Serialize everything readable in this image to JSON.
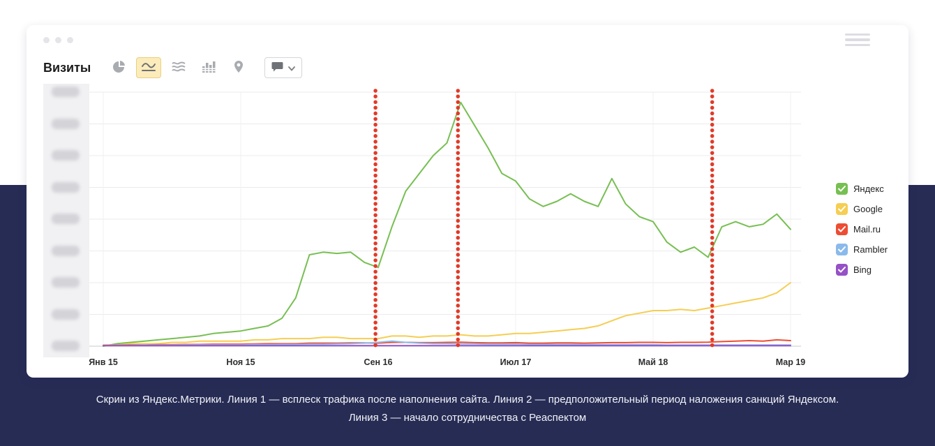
{
  "colors": {
    "page_band": "#272c55",
    "annotation_line": "#e23a28",
    "selected_button_bg": "#fcecbb"
  },
  "toolbar": {
    "metric_label": "Визиты",
    "chart_type_buttons": [
      {
        "icon": "pie-chart",
        "selected": false
      },
      {
        "icon": "line-chart",
        "selected": true
      },
      {
        "icon": "area-chart",
        "selected": false
      },
      {
        "icon": "bar-chart",
        "selected": false
      },
      {
        "icon": "map-pin",
        "selected": false
      }
    ],
    "comment_button": {
      "icon": "comment-bubble",
      "has_dropdown": true
    }
  },
  "legend": {
    "items": [
      {
        "label": "Яндекс",
        "color": "#77bf52",
        "checked": true
      },
      {
        "label": "Google",
        "color": "#f5ce52",
        "checked": true
      },
      {
        "label": "Mail.ru",
        "color": "#ee4d33",
        "checked": true
      },
      {
        "label": "Rambler",
        "color": "#8abaeb",
        "checked": true
      },
      {
        "label": "Bing",
        "color": "#9551c6",
        "checked": true
      }
    ]
  },
  "caption": {
    "line1": "Скрин из Яндекс.Метрики. Линия 1 — всплеск трафика после наполнения сайта. Линия 2 — предположительный период наложения санкций Яндексом.",
    "line2": "Линия 3 — начало сотрудничества с Реаспектом"
  },
  "chart_data": {
    "type": "line",
    "title": "Визиты",
    "x_unit": "months, Jan 2015 – Mar 2019",
    "x_tick_labels": [
      "Янв 15",
      "Ноя 15",
      "Сен 16",
      "Июл 17",
      "Май 18",
      "Мар 19"
    ],
    "x_tick_month_indices": [
      0,
      10,
      20,
      30,
      40,
      50
    ],
    "y_tick_labels": "blurred / illegible in screenshot",
    "ylim": [
      0,
      100
    ],
    "y_unit": "visits (relative scale, axis labels blurred)",
    "grid": true,
    "legend_position": "right",
    "annotation_color": "#e23a28",
    "annotations": [
      {
        "name": "Линия 1",
        "month_index": 19.8,
        "style": "red dotted vertical line"
      },
      {
        "name": "Линия 2",
        "month_index": 25.8,
        "style": "red dotted vertical line"
      },
      {
        "name": "Линия 3",
        "month_index": 44.3,
        "style": "red dotted vertical line"
      }
    ],
    "series": [
      {
        "name": "Яндекс",
        "color": "#77bf52",
        "values": [
          0,
          1,
          1.5,
          2,
          2.5,
          3,
          3.5,
          4,
          5,
          5.5,
          6,
          7,
          8,
          11,
          19,
          36,
          37,
          36.5,
          37,
          33,
          31,
          47,
          61,
          68,
          75,
          80,
          96,
          87,
          78,
          68,
          65,
          58,
          55,
          57,
          60,
          57,
          55,
          66,
          56,
          51,
          49,
          41,
          37,
          39,
          35,
          47,
          49,
          47,
          48,
          52,
          46
        ]
      },
      {
        "name": "Google",
        "color": "#f5ce52",
        "values": [
          0.5,
          0.5,
          1,
          1,
          1,
          1.5,
          1.5,
          2,
          2,
          2,
          2,
          2.5,
          2.5,
          3,
          3,
          3,
          3.5,
          3.5,
          3,
          3,
          3,
          4,
          4,
          3.5,
          4,
          4,
          4.5,
          4,
          4,
          4.5,
          5,
          5,
          5.5,
          6,
          6.5,
          7,
          8,
          10,
          12,
          13,
          14,
          14,
          14.5,
          14,
          15,
          16,
          17,
          18,
          19,
          21,
          25
        ]
      },
      {
        "name": "Mail.ru",
        "color": "#ee4d33",
        "values": [
          0.3,
          0.4,
          0.5,
          0.5,
          0.6,
          0.6,
          0.7,
          0.7,
          0.8,
          0.8,
          0.8,
          0.9,
          1,
          1,
          1,
          1.2,
          1.2,
          1.2,
          1.3,
          1.3,
          1.2,
          1.5,
          1.5,
          1.4,
          1.4,
          1.5,
          1.6,
          1.4,
          1.3,
          1.3,
          1.4,
          1.2,
          1.2,
          1.3,
          1.3,
          1.2,
          1.3,
          1.4,
          1.4,
          1.5,
          1.5,
          1.4,
          1.5,
          1.5,
          1.6,
          1.8,
          2,
          2.2,
          2,
          2.5,
          2.2
        ]
      },
      {
        "name": "Rambler",
        "color": "#8abaeb",
        "values": [
          0.2,
          0.3,
          0.3,
          0.4,
          0.4,
          0.4,
          0.5,
          0.5,
          0.5,
          0.5,
          0.5,
          0.6,
          0.6,
          0.7,
          0.7,
          0.8,
          0.8,
          0.9,
          1,
          1.2,
          1.5,
          2,
          1.5,
          1.2,
          1,
          1,
          0.9,
          0.9,
          0.8,
          0.8,
          0.8,
          0.7,
          0.7,
          0.7,
          0.7,
          0.6,
          0.6,
          0.6,
          0.6,
          0.6,
          0.6,
          0.5,
          0.5,
          0.5,
          0.5,
          0.5,
          0.5,
          0.5,
          0.5,
          0.5,
          0.5
        ]
      },
      {
        "name": "Bing",
        "color": "#9551c6",
        "values": [
          0.2,
          0.2,
          0.2,
          0.2,
          0.2,
          0.2,
          0.2,
          0.2,
          0.2,
          0.2,
          0.2,
          0.2,
          0.2,
          0.2,
          0.2,
          0.2,
          0.2,
          0.2,
          0.2,
          0.2,
          0.2,
          0.2,
          0.2,
          0.2,
          0.2,
          0.2,
          0.2,
          0.2,
          0.2,
          0.2,
          0.2,
          0.2,
          0.2,
          0.2,
          0.2,
          0.2,
          0.2,
          0.2,
          0.2,
          0.2,
          0.2,
          0.2,
          0.2,
          0.2,
          0.2,
          0.2,
          0.2,
          0.2,
          0.2,
          0.2,
          0.2
        ]
      }
    ]
  }
}
